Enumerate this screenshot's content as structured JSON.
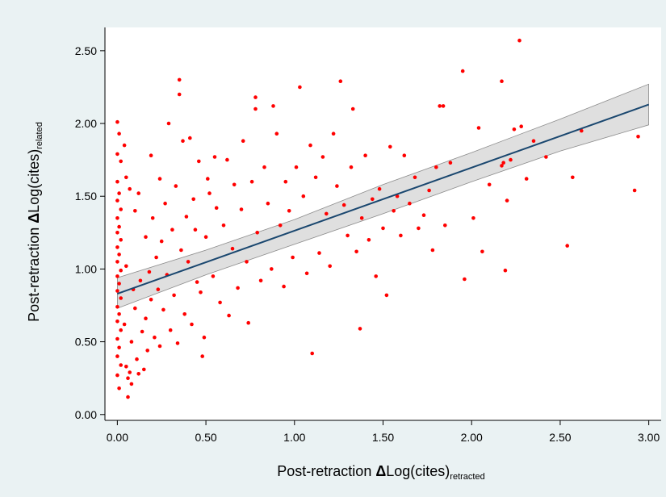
{
  "chart_data": {
    "type": "scatter",
    "title": "",
    "xlabel": {
      "prefix": "Post-retraction ",
      "delta": "Δ",
      "main": "Log(cites)",
      "subscript": "retracted"
    },
    "ylabel": {
      "prefix": "Post-retraction ",
      "delta": "Δ",
      "main": "Log(cites)",
      "subscript": "related"
    },
    "xlim": [
      -0.07,
      3.07
    ],
    "ylim": [
      -0.04,
      2.66
    ],
    "xticks": [
      0,
      0.5,
      1,
      1.5,
      2,
      2.5,
      3
    ],
    "xtick_labels": [
      "0.00",
      "0.50",
      "1.00",
      "1.50",
      "2.00",
      "2.50",
      "3.00"
    ],
    "yticks": [
      0,
      0.5,
      1,
      1.5,
      2,
      2.5
    ],
    "ytick_labels": [
      "0.00",
      "0.50",
      "1.00",
      "1.50",
      "2.00",
      "2.50"
    ],
    "grid": false,
    "legend": "none",
    "colors": {
      "background": "#eaf2f3",
      "plot_background": "#ffffff",
      "points": "#ff0000",
      "fit_line": "#1a476f",
      "ci_band": "#d9d9d9",
      "ci_edge": "#8c8c8c"
    },
    "fit_line": {
      "x": [
        0,
        3
      ],
      "y": [
        0.83,
        2.13
      ]
    },
    "ci_band": {
      "x": [
        0,
        0.5,
        1,
        1.5,
        2,
        2.5,
        3
      ],
      "upper": [
        0.94,
        1.13,
        1.34,
        1.58,
        1.8,
        2.03,
        2.27
      ],
      "lower": [
        0.73,
        0.96,
        1.17,
        1.38,
        1.6,
        1.81,
        1.99
      ]
    },
    "series": [
      {
        "points": [
          [
            0.0,
            2.01
          ],
          [
            0.01,
            1.93
          ],
          [
            0.0,
            1.79
          ],
          [
            0.02,
            1.74
          ],
          [
            0.0,
            1.6
          ],
          [
            0.01,
            1.52
          ],
          [
            0.0,
            1.47
          ],
          [
            0.02,
            1.41
          ],
          [
            0.0,
            1.35
          ],
          [
            0.01,
            1.29
          ],
          [
            0.0,
            1.25
          ],
          [
            0.02,
            1.2
          ],
          [
            0.0,
            1.15
          ],
          [
            0.01,
            1.1
          ],
          [
            0.0,
            1.05
          ],
          [
            0.02,
            0.99
          ],
          [
            0.0,
            0.95
          ],
          [
            0.01,
            0.9
          ],
          [
            0.0,
            0.85
          ],
          [
            0.02,
            0.8
          ],
          [
            0.0,
            0.74
          ],
          [
            0.01,
            0.69
          ],
          [
            0.0,
            0.64
          ],
          [
            0.02,
            0.58
          ],
          [
            0.0,
            0.52
          ],
          [
            0.01,
            0.46
          ],
          [
            0.0,
            0.4
          ],
          [
            0.02,
            0.34
          ],
          [
            0.0,
            0.27
          ],
          [
            0.01,
            0.18
          ],
          [
            0.04,
            1.85
          ],
          [
            0.05,
            1.63
          ],
          [
            0.05,
            1.02
          ],
          [
            0.04,
            0.62
          ],
          [
            0.05,
            0.33
          ],
          [
            0.06,
            0.25
          ],
          [
            0.06,
            0.12
          ],
          [
            0.07,
            1.55
          ],
          [
            0.07,
            0.29
          ],
          [
            0.08,
            0.21
          ],
          [
            0.08,
            0.5
          ],
          [
            0.09,
            0.86
          ],
          [
            0.1,
            1.4
          ],
          [
            0.1,
            0.73
          ],
          [
            0.11,
            0.38
          ],
          [
            0.12,
            1.52
          ],
          [
            0.12,
            0.28
          ],
          [
            0.13,
            0.92
          ],
          [
            0.14,
            0.57
          ],
          [
            0.15,
            0.31
          ],
          [
            0.16,
            1.22
          ],
          [
            0.16,
            0.66
          ],
          [
            0.17,
            0.44
          ],
          [
            0.18,
            0.98
          ],
          [
            0.19,
            0.79
          ],
          [
            0.19,
            1.78
          ],
          [
            0.2,
            1.35
          ],
          [
            0.21,
            0.53
          ],
          [
            0.22,
            1.08
          ],
          [
            0.23,
            0.86
          ],
          [
            0.24,
            1.62
          ],
          [
            0.24,
            0.47
          ],
          [
            0.25,
            1.19
          ],
          [
            0.26,
            0.72
          ],
          [
            0.27,
            1.45
          ],
          [
            0.28,
            0.96
          ],
          [
            0.29,
            2.0
          ],
          [
            0.3,
            0.58
          ],
          [
            0.31,
            1.27
          ],
          [
            0.32,
            0.82
          ],
          [
            0.33,
            1.57
          ],
          [
            0.34,
            0.49
          ],
          [
            0.35,
            2.3
          ],
          [
            0.35,
            2.2
          ],
          [
            0.36,
            1.13
          ],
          [
            0.37,
            1.88
          ],
          [
            0.38,
            0.69
          ],
          [
            0.39,
            1.36
          ],
          [
            0.4,
            1.05
          ],
          [
            0.41,
            1.9
          ],
          [
            0.42,
            0.62
          ],
          [
            0.43,
            1.48
          ],
          [
            0.44,
            1.27
          ],
          [
            0.45,
            0.91
          ],
          [
            0.46,
            1.74
          ],
          [
            0.47,
            0.84
          ],
          [
            0.48,
            0.4
          ],
          [
            0.49,
            0.53
          ],
          [
            0.5,
            1.22
          ],
          [
            0.51,
            1.62
          ],
          [
            0.52,
            1.52
          ],
          [
            0.54,
            0.95
          ],
          [
            0.55,
            1.77
          ],
          [
            0.56,
            1.42
          ],
          [
            0.58,
            0.77
          ],
          [
            0.6,
            1.3
          ],
          [
            0.62,
            1.75
          ],
          [
            0.63,
            0.68
          ],
          [
            0.65,
            1.14
          ],
          [
            0.66,
            1.58
          ],
          [
            0.68,
            0.87
          ],
          [
            0.7,
            1.41
          ],
          [
            0.71,
            1.88
          ],
          [
            0.73,
            1.05
          ],
          [
            0.74,
            0.63
          ],
          [
            0.76,
            1.6
          ],
          [
            0.78,
            2.18
          ],
          [
            0.78,
            2.1
          ],
          [
            0.79,
            1.25
          ],
          [
            0.81,
            0.92
          ],
          [
            0.83,
            1.7
          ],
          [
            0.85,
            1.45
          ],
          [
            0.87,
            1.0
          ],
          [
            0.88,
            2.12
          ],
          [
            0.9,
            1.93
          ],
          [
            0.92,
            1.3
          ],
          [
            0.94,
            0.88
          ],
          [
            0.95,
            1.6
          ],
          [
            0.97,
            1.4
          ],
          [
            0.99,
            1.08
          ],
          [
            1.01,
            1.7
          ],
          [
            1.03,
            2.25
          ],
          [
            1.05,
            1.5
          ],
          [
            1.07,
            0.97
          ],
          [
            1.09,
            1.85
          ],
          [
            1.1,
            0.42
          ],
          [
            1.12,
            1.63
          ],
          [
            1.14,
            1.11
          ],
          [
            1.16,
            1.77
          ],
          [
            1.18,
            1.38
          ],
          [
            1.2,
            1.02
          ],
          [
            1.22,
            1.93
          ],
          [
            1.24,
            1.57
          ],
          [
            1.26,
            2.29
          ],
          [
            1.28,
            1.44
          ],
          [
            1.3,
            1.23
          ],
          [
            1.32,
            1.7
          ],
          [
            1.33,
            2.1
          ],
          [
            1.35,
            1.12
          ],
          [
            1.37,
            0.59
          ],
          [
            1.38,
            1.35
          ],
          [
            1.4,
            1.78
          ],
          [
            1.42,
            1.2
          ],
          [
            1.44,
            1.48
          ],
          [
            1.46,
            0.95
          ],
          [
            1.48,
            1.55
          ],
          [
            1.5,
            1.28
          ],
          [
            1.52,
            0.82
          ],
          [
            1.54,
            1.84
          ],
          [
            1.56,
            1.4
          ],
          [
            1.58,
            1.5
          ],
          [
            1.6,
            1.23
          ],
          [
            1.62,
            1.78
          ],
          [
            1.65,
            1.45
          ],
          [
            1.68,
            1.63
          ],
          [
            1.7,
            1.28
          ],
          [
            1.73,
            1.37
          ],
          [
            1.76,
            1.54
          ],
          [
            1.78,
            1.13
          ],
          [
            1.8,
            1.7
          ],
          [
            1.82,
            2.12
          ],
          [
            1.84,
            2.12
          ],
          [
            1.85,
            1.3
          ],
          [
            1.88,
            1.73
          ],
          [
            1.95,
            2.36
          ],
          [
            1.96,
            0.93
          ],
          [
            2.01,
            1.35
          ],
          [
            2.04,
            1.97
          ],
          [
            2.06,
            1.12
          ],
          [
            2.1,
            1.58
          ],
          [
            2.17,
            2.29
          ],
          [
            2.17,
            1.71
          ],
          [
            2.18,
            1.73
          ],
          [
            2.19,
            0.99
          ],
          [
            2.2,
            1.47
          ],
          [
            2.22,
            1.75
          ],
          [
            2.24,
            1.96
          ],
          [
            2.27,
            2.57
          ],
          [
            2.28,
            1.98
          ],
          [
            2.31,
            1.62
          ],
          [
            2.35,
            1.88
          ],
          [
            2.42,
            1.77
          ],
          [
            2.54,
            1.16
          ],
          [
            2.57,
            1.63
          ],
          [
            2.62,
            1.95
          ],
          [
            2.92,
            1.54
          ],
          [
            2.94,
            1.91
          ]
        ]
      }
    ]
  }
}
